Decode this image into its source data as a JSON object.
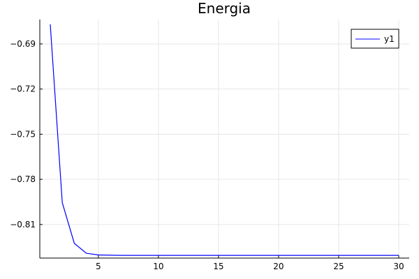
{
  "chart_data": {
    "type": "line",
    "title": "Energia",
    "xlabel": "",
    "ylabel": "",
    "x": [
      1,
      2,
      3,
      4,
      5,
      6,
      7,
      8,
      9,
      10,
      11,
      12,
      13,
      14,
      15,
      16,
      17,
      18,
      19,
      20,
      21,
      22,
      23,
      24,
      25,
      26,
      27,
      28,
      29,
      30
    ],
    "series": [
      {
        "name": "y1",
        "color": "#0000ff",
        "values": [
          -0.677,
          -0.7955,
          -0.8225,
          -0.8291,
          -0.8302,
          -0.8304,
          -0.8305,
          -0.8305,
          -0.8305,
          -0.8305,
          -0.8305,
          -0.8305,
          -0.8305,
          -0.8305,
          -0.8305,
          -0.8305,
          -0.8305,
          -0.8305,
          -0.8305,
          -0.8305,
          -0.8305,
          -0.8305,
          -0.8305,
          -0.8305,
          -0.8305,
          -0.8305,
          -0.8305,
          -0.8305,
          -0.8305,
          -0.8305
        ]
      }
    ],
    "xlim": [
      0.13,
      30.87
    ],
    "ylim": [
      -0.8323,
      -0.6738
    ],
    "xticks": [
      5,
      10,
      15,
      20,
      25,
      30
    ],
    "xtick_labels": [
      "5",
      "10",
      "15",
      "20",
      "25",
      "30"
    ],
    "yticks": [
      -0.69,
      -0.72,
      -0.75,
      -0.78,
      -0.81
    ],
    "ytick_labels": [
      "−0.69",
      "−0.72",
      "−0.75",
      "−0.78",
      "−0.81"
    ],
    "grid": true,
    "legend_position": "top-right"
  }
}
